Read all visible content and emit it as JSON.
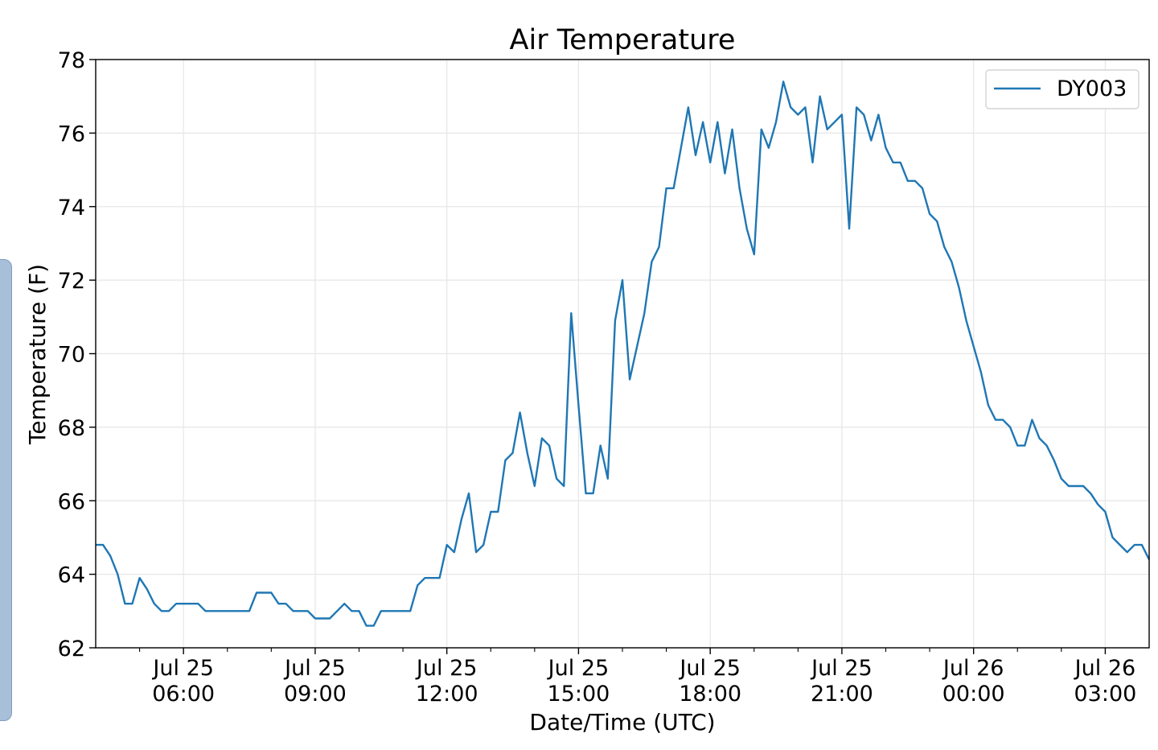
{
  "chart_data": {
    "type": "line",
    "title": "Air Temperature",
    "xlabel": "Date/Time (UTC)",
    "ylabel": "Temperature (F)",
    "x_range": [
      "2019-07-25T04:00",
      "2019-07-26T04:00"
    ],
    "ylim": [
      62,
      78
    ],
    "y_ticks": [
      62,
      64,
      66,
      68,
      70,
      72,
      74,
      76,
      78
    ],
    "x_ticks": [
      {
        "time": "2019-07-25T06:00",
        "line1": "Jul 25",
        "line2": "06:00"
      },
      {
        "time": "2019-07-25T09:00",
        "line1": "Jul 25",
        "line2": "09:00"
      },
      {
        "time": "2019-07-25T12:00",
        "line1": "Jul 25",
        "line2": "12:00"
      },
      {
        "time": "2019-07-25T15:00",
        "line1": "Jul 25",
        "line2": "15:00"
      },
      {
        "time": "2019-07-25T18:00",
        "line1": "Jul 25",
        "line2": "18:00"
      },
      {
        "time": "2019-07-25T21:00",
        "line1": "Jul 25",
        "line2": "21:00"
      },
      {
        "time": "2019-07-26T00:00",
        "line1": "Jul 26",
        "line2": "00:00"
      },
      {
        "time": "2019-07-26T03:00",
        "line1": "Jul 26",
        "line2": "03:00"
      }
    ],
    "minor_ticks": [
      "2019-07-25T05:00",
      "2019-07-25T07:00",
      "2019-07-25T08:00",
      "2019-07-25T10:00",
      "2019-07-25T11:00",
      "2019-07-25T13:00",
      "2019-07-25T14:00",
      "2019-07-25T16:00",
      "2019-07-25T17:00",
      "2019-07-25T19:00",
      "2019-07-25T20:00",
      "2019-07-25T22:00",
      "2019-07-25T23:00",
      "2019-07-26T01:00",
      "2019-07-26T02:00"
    ],
    "grid": true,
    "legend_position": "top-right",
    "series": [
      {
        "name": "DY003",
        "color": "#1f77b4",
        "x": [
          "2019-07-25T04:00",
          "2019-07-25T04:10",
          "2019-07-25T04:20",
          "2019-07-25T04:30",
          "2019-07-25T04:40",
          "2019-07-25T04:50",
          "2019-07-25T05:00",
          "2019-07-25T05:10",
          "2019-07-25T05:20",
          "2019-07-25T05:30",
          "2019-07-25T05:40",
          "2019-07-25T05:50",
          "2019-07-25T06:00",
          "2019-07-25T06:10",
          "2019-07-25T06:20",
          "2019-07-25T06:30",
          "2019-07-25T06:40",
          "2019-07-25T06:50",
          "2019-07-25T07:00",
          "2019-07-25T07:10",
          "2019-07-25T07:20",
          "2019-07-25T07:30",
          "2019-07-25T07:40",
          "2019-07-25T07:50",
          "2019-07-25T08:00",
          "2019-07-25T08:10",
          "2019-07-25T08:20",
          "2019-07-25T08:30",
          "2019-07-25T08:40",
          "2019-07-25T08:50",
          "2019-07-25T09:00",
          "2019-07-25T09:10",
          "2019-07-25T09:20",
          "2019-07-25T09:30",
          "2019-07-25T09:40",
          "2019-07-25T09:50",
          "2019-07-25T10:00",
          "2019-07-25T10:10",
          "2019-07-25T10:20",
          "2019-07-25T10:30",
          "2019-07-25T10:40",
          "2019-07-25T10:50",
          "2019-07-25T11:00",
          "2019-07-25T11:10",
          "2019-07-25T11:20",
          "2019-07-25T11:30",
          "2019-07-25T11:40",
          "2019-07-25T11:50",
          "2019-07-25T12:00",
          "2019-07-25T12:10",
          "2019-07-25T12:20",
          "2019-07-25T12:30",
          "2019-07-25T12:40",
          "2019-07-25T12:50",
          "2019-07-25T13:00",
          "2019-07-25T13:10",
          "2019-07-25T13:20",
          "2019-07-25T13:30",
          "2019-07-25T13:40",
          "2019-07-25T13:50",
          "2019-07-25T14:00",
          "2019-07-25T14:10",
          "2019-07-25T14:20",
          "2019-07-25T14:30",
          "2019-07-25T14:40",
          "2019-07-25T14:50",
          "2019-07-25T15:00",
          "2019-07-25T15:10",
          "2019-07-25T15:20",
          "2019-07-25T15:30",
          "2019-07-25T15:40",
          "2019-07-25T15:50",
          "2019-07-25T16:00",
          "2019-07-25T16:10",
          "2019-07-25T16:20",
          "2019-07-25T16:30",
          "2019-07-25T16:40",
          "2019-07-25T16:50",
          "2019-07-25T17:00",
          "2019-07-25T17:10",
          "2019-07-25T17:20",
          "2019-07-25T17:30",
          "2019-07-25T17:40",
          "2019-07-25T17:50",
          "2019-07-25T18:00",
          "2019-07-25T18:10",
          "2019-07-25T18:20",
          "2019-07-25T18:30",
          "2019-07-25T18:40",
          "2019-07-25T18:50",
          "2019-07-25T19:00",
          "2019-07-25T19:10",
          "2019-07-25T19:20",
          "2019-07-25T19:30",
          "2019-07-25T19:40",
          "2019-07-25T19:50",
          "2019-07-25T20:00",
          "2019-07-25T20:10",
          "2019-07-25T20:20",
          "2019-07-25T20:30",
          "2019-07-25T20:40",
          "2019-07-25T20:50",
          "2019-07-25T21:00",
          "2019-07-25T21:10",
          "2019-07-25T21:20",
          "2019-07-25T21:30",
          "2019-07-25T21:40",
          "2019-07-25T21:50",
          "2019-07-25T22:00",
          "2019-07-25T22:10",
          "2019-07-25T22:20",
          "2019-07-25T22:30",
          "2019-07-25T22:40",
          "2019-07-25T22:50",
          "2019-07-25T23:00",
          "2019-07-25T23:10",
          "2019-07-25T23:20",
          "2019-07-25T23:30",
          "2019-07-25T23:40",
          "2019-07-25T23:50",
          "2019-07-26T00:00",
          "2019-07-26T00:10",
          "2019-07-26T00:20",
          "2019-07-26T00:30",
          "2019-07-26T00:40",
          "2019-07-26T00:50",
          "2019-07-26T01:00",
          "2019-07-26T01:10",
          "2019-07-26T01:20",
          "2019-07-26T01:30",
          "2019-07-26T01:40",
          "2019-07-26T01:50",
          "2019-07-26T02:00",
          "2019-07-26T02:10",
          "2019-07-26T02:20",
          "2019-07-26T02:30",
          "2019-07-26T02:40",
          "2019-07-26T02:50",
          "2019-07-26T03:00",
          "2019-07-26T03:10",
          "2019-07-26T03:20",
          "2019-07-26T03:30",
          "2019-07-26T03:40",
          "2019-07-26T03:50",
          "2019-07-26T04:00"
        ],
        "values": [
          64.8,
          64.8,
          64.5,
          64.0,
          63.2,
          63.2,
          63.9,
          63.6,
          63.2,
          63.0,
          63.0,
          63.2,
          63.2,
          63.2,
          63.2,
          63.0,
          63.0,
          63.0,
          63.0,
          63.0,
          63.0,
          63.0,
          63.5,
          63.5,
          63.5,
          63.2,
          63.2,
          63.0,
          63.0,
          63.0,
          62.8,
          62.8,
          62.8,
          63.0,
          63.2,
          63.0,
          63.0,
          62.6,
          62.6,
          63.0,
          63.0,
          63.0,
          63.0,
          63.0,
          63.7,
          63.9,
          63.9,
          63.9,
          64.8,
          64.6,
          65.5,
          66.2,
          64.6,
          64.8,
          65.7,
          65.7,
          67.1,
          67.3,
          68.4,
          67.3,
          66.4,
          67.7,
          67.5,
          66.6,
          66.4,
          71.1,
          68.6,
          66.2,
          66.2,
          67.5,
          66.6,
          70.9,
          72.0,
          69.3,
          70.2,
          71.1,
          72.5,
          72.9,
          74.5,
          74.5,
          75.6,
          76.7,
          75.4,
          76.3,
          75.2,
          76.3,
          74.9,
          76.1,
          74.5,
          73.4,
          72.7,
          76.1,
          75.6,
          76.3,
          77.4,
          76.7,
          76.5,
          76.7,
          75.2,
          77.0,
          76.1,
          76.3,
          76.5,
          73.4,
          76.7,
          76.5,
          75.8,
          76.5,
          75.6,
          75.2,
          75.2,
          74.7,
          74.7,
          74.5,
          73.8,
          73.6,
          72.9,
          72.5,
          71.8,
          70.9,
          70.2,
          69.5,
          68.6,
          68.2,
          68.2,
          68.0,
          67.5,
          67.5,
          68.2,
          67.7,
          67.5,
          67.1,
          66.6,
          66.4,
          66.4,
          66.4,
          66.2,
          65.9,
          65.7,
          65.0,
          64.8,
          64.6,
          64.8,
          64.8,
          64.4
        ]
      }
    ]
  }
}
